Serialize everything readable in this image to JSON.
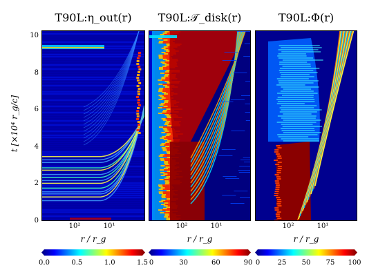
{
  "chart_data": [
    {
      "type": "heatmap",
      "title": "T90L:η_out(r)",
      "xlabel": "r / r_g",
      "ylabel": "t [×10⁴ r_g/c]",
      "y_ticks": [
        "0",
        "2",
        "4",
        "6",
        "8",
        "10"
      ],
      "x_ticks": [
        "10²",
        "10¹"
      ],
      "ylim": [
        0,
        10.3
      ],
      "colorbar": {
        "ticks": [
          "0.0",
          "0.5",
          "1.0",
          "1.5"
        ],
        "range": [
          0.0,
          1.5
        ]
      }
    },
    {
      "type": "heatmap",
      "title": "T90L:𝒯_disk(r)",
      "xlabel": "r / r_g",
      "x_ticks": [
        "10²",
        "10¹"
      ],
      "ylim": [
        0,
        10.3
      ],
      "colorbar": {
        "ticks": [
          "0",
          "30",
          "60",
          "90"
        ],
        "range": [
          0,
          90
        ]
      }
    },
    {
      "type": "heatmap",
      "title": "T90L:Φ(r)",
      "xlabel": "r / r_g",
      "x_ticks": [
        "10²",
        "10¹"
      ],
      "ylim": [
        0,
        10.3
      ],
      "colorbar": {
        "ticks": [
          "0",
          "25",
          "50",
          "75",
          "100"
        ],
        "range": [
          0,
          100
        ]
      }
    }
  ],
  "colormap": [
    "#00007f",
    "#0000ff",
    "#007fff",
    "#00ffff",
    "#7fff7f",
    "#ffff00",
    "#ff7f00",
    "#ff0000",
    "#7f0000"
  ]
}
